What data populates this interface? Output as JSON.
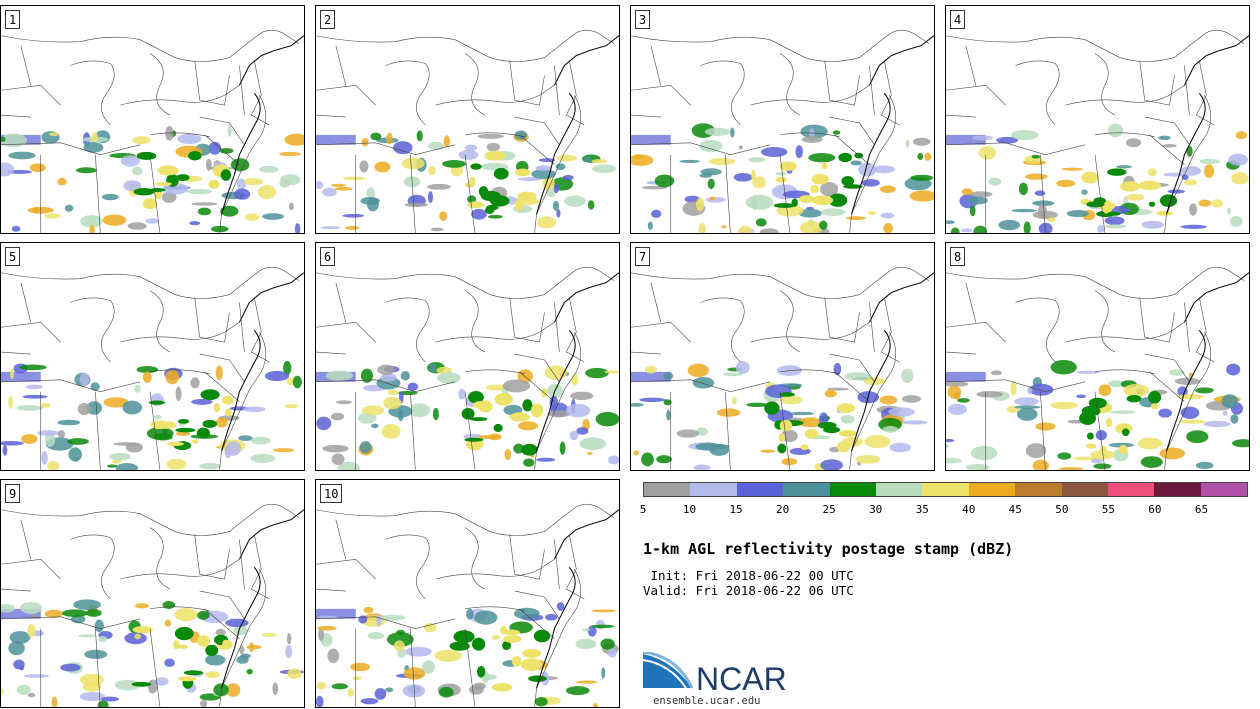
{
  "panels": [
    {
      "label": "1"
    },
    {
      "label": "2"
    },
    {
      "label": "3"
    },
    {
      "label": "4"
    },
    {
      "label": "5"
    },
    {
      "label": "6"
    },
    {
      "label": "7"
    },
    {
      "label": "8"
    },
    {
      "label": "9"
    },
    {
      "label": "10"
    }
  ],
  "legend": {
    "colors": [
      "#a0a0a0",
      "#b4b9ec",
      "#5b61d6",
      "#4d929a",
      "#0a8a0a",
      "#b9dcbe",
      "#ede26a",
      "#ecab22",
      "#ba7c2f",
      "#8a5640",
      "#ee4f7c",
      "#6a1a3a",
      "#b24fa8"
    ],
    "ticks": [
      "5",
      "10",
      "15",
      "20",
      "25",
      "30",
      "35",
      "40",
      "45",
      "50",
      "55",
      "60",
      "65"
    ]
  },
  "title": "1-km AGL reflectivity postage stamp (dBZ)",
  "init": " Init: Fri 2018-06-22 00 UTC",
  "valid": "Valid: Fri 2018-06-22 06 UTC",
  "logo_text": "NCAR",
  "url": "ensemble.ucar.edu"
}
